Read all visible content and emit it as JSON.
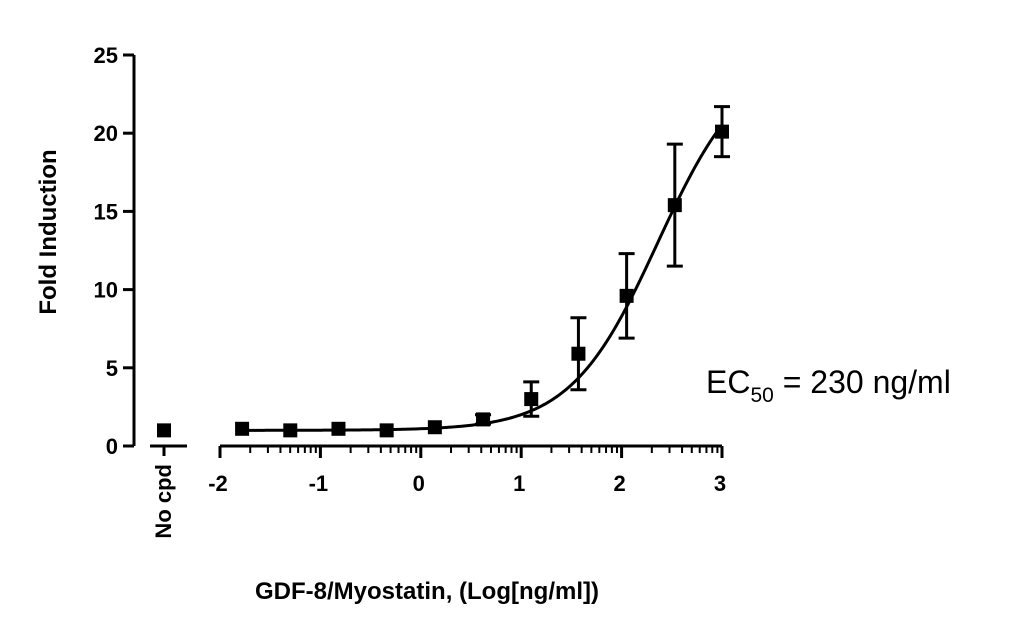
{
  "chart_data": {
    "type": "scatter",
    "xlabel": "GDF-8/Myostatin, (Log[ng/ml])",
    "ylabel": "Fold Induction",
    "ylim": [
      0,
      25
    ],
    "xlim": [
      -2,
      3
    ],
    "y_ticks": [
      0,
      5,
      10,
      15,
      20,
      25
    ],
    "x_ticks": [
      -2,
      -1,
      0,
      1,
      2,
      3
    ],
    "y_tick_labels": [
      "0",
      "5",
      "10",
      "15",
      "20",
      "25"
    ],
    "x_tick_labels": [
      "-2",
      "-1",
      "0",
      "1",
      "2",
      "3"
    ],
    "control": {
      "label": "No cpd",
      "value": 1.0
    },
    "points": [
      {
        "x": -1.78,
        "y": 1.1,
        "err": 0.2
      },
      {
        "x": -1.3,
        "y": 1.0,
        "err": 0.15
      },
      {
        "x": -0.82,
        "y": 1.1,
        "err": 0.15
      },
      {
        "x": -0.34,
        "y": 1.0,
        "err": 0.15
      },
      {
        "x": 0.14,
        "y": 1.2,
        "err": 0.2
      },
      {
        "x": 0.62,
        "y": 1.7,
        "err": 0.3
      },
      {
        "x": 1.1,
        "y": 3.0,
        "err": 1.1
      },
      {
        "x": 1.57,
        "y": 5.9,
        "err": 2.3
      },
      {
        "x": 2.05,
        "y": 9.6,
        "err": 2.7
      },
      {
        "x": 2.53,
        "y": 15.4,
        "err": 3.9
      },
      {
        "x": 3.0,
        "y": 20.1,
        "err": 1.6
      }
    ],
    "fit": {
      "bottom": 1.0,
      "top": 25.0,
      "log_ec50": 2.36,
      "hill": 1.0
    },
    "annotation": {
      "main": "EC",
      "sub": "50",
      "rest": " = 230 ng/ml"
    },
    "grid": false,
    "legend": "none"
  }
}
